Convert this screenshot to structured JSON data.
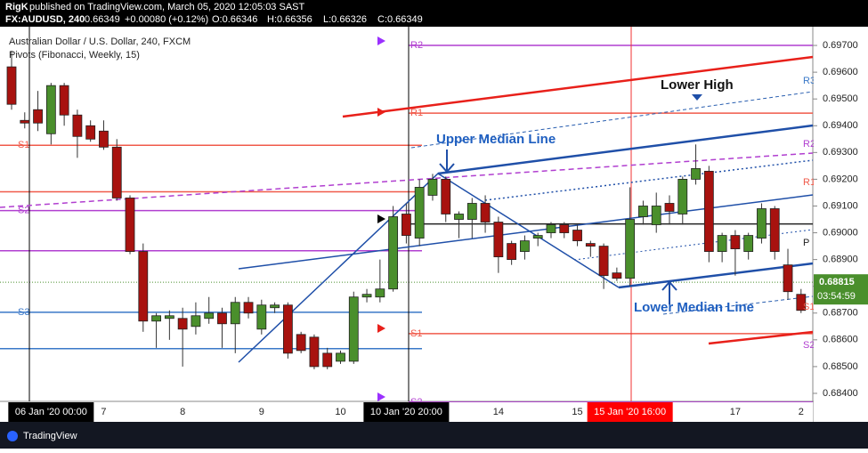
{
  "header": {
    "publisher": "RigK",
    "published": "published on TradingView.com, March 05, 2020 12:05:03 SAST",
    "symbol": "FX:AUDUSD, 240",
    "last": "0.66349",
    "change": "+0.00080 (+0.12%)",
    "open": "O:0.66346",
    "high": "H:0.66356",
    "low": "L:0.66326",
    "close": "C:0.66349"
  },
  "footer": {
    "brand": "TradingView"
  },
  "chart_data": {
    "type": "candlestick",
    "title": "Australian Dollar / U.S. Dollar, 240, FXCM",
    "subtitle": "Pivots (Fibonacci, Weekly, 15)",
    "categories": [
      null,
      null,
      null,
      "06 Jan '20  00:00",
      null,
      null,
      null,
      "7",
      null,
      null,
      null,
      null,
      null,
      "8",
      null,
      null,
      null,
      null,
      null,
      "9",
      null,
      null,
      null,
      null,
      null,
      "10",
      null,
      null,
      null,
      null,
      "10 Jan '20  20:00",
      null,
      null,
      null,
      null,
      null,
      null,
      "14",
      null,
      null,
      null,
      null,
      null,
      "15",
      null,
      null,
      null,
      "15 Jan '20  16:00",
      null,
      null,
      null,
      null,
      null,
      null,
      null,
      "17",
      null,
      null,
      null,
      null,
      "2"
    ],
    "open": [
      0.6962,
      0.6942,
      0.6946,
      0.6937,
      0.6955,
      0.6944,
      0.694,
      0.6938,
      0.6932,
      0.6913,
      0.6893,
      0.6867,
      0.6868,
      0.6868,
      0.6865,
      0.6868,
      0.687,
      0.6866,
      0.6874,
      0.6864,
      0.6872,
      0.6873,
      0.6862,
      0.6861,
      0.6855,
      0.6852,
      0.6852,
      0.6876,
      0.6876,
      0.6879,
      0.6907,
      0.6898,
      0.6914,
      0.692,
      0.6905,
      0.6905,
      0.6911,
      0.6904,
      0.6896,
      0.6893,
      0.6898,
      0.69,
      0.6903,
      0.6901,
      0.6896,
      0.6895,
      0.6885,
      0.6883,
      0.6906,
      0.6903,
      0.6911,
      0.6907,
      0.692,
      0.6923,
      0.6893,
      0.6899,
      0.6893,
      0.6898,
      0.6909,
      0.6888,
      0.6877
    ],
    "high": [
      0.6968,
      0.6945,
      0.6953,
      0.6956,
      0.6956,
      0.6946,
      0.6942,
      0.6942,
      0.6935,
      0.6914,
      0.6896,
      0.687,
      0.6871,
      0.6872,
      0.6874,
      0.6876,
      0.6872,
      0.6876,
      0.6876,
      0.6875,
      0.6874,
      0.6874,
      0.6863,
      0.6862,
      0.6857,
      0.6856,
      0.6878,
      0.6879,
      0.689,
      0.691,
      0.6911,
      0.692,
      0.6922,
      0.6921,
      0.6908,
      0.6913,
      0.6914,
      0.6906,
      0.6897,
      0.6899,
      0.69,
      0.6904,
      0.6904,
      0.6903,
      0.6897,
      0.6896,
      0.6887,
      0.6917,
      0.6912,
      0.6915,
      0.6914,
      0.6921,
      0.6933,
      0.6925,
      0.69,
      0.6901,
      0.69,
      0.6911,
      0.691,
      0.6894,
      0.6879
    ],
    "low": [
      0.6946,
      0.6939,
      0.6938,
      0.6933,
      0.694,
      0.6928,
      0.6934,
      0.6931,
      0.6912,
      0.6892,
      0.6863,
      0.6857,
      0.686,
      0.685,
      0.6862,
      0.6866,
      0.6857,
      0.6855,
      0.6868,
      0.6862,
      0.687,
      0.6853,
      0.6855,
      0.6849,
      0.6849,
      0.6851,
      0.6851,
      0.6874,
      0.6874,
      0.6878,
      0.6896,
      0.6895,
      0.6912,
      0.6904,
      0.6898,
      0.6898,
      0.69,
      0.6885,
      0.6888,
      0.689,
      0.6895,
      0.6898,
      0.6898,
      0.6895,
      0.6891,
      0.6879,
      0.6882,
      0.688,
      0.6903,
      0.69,
      0.6903,
      0.6903,
      0.6918,
      0.6889,
      0.6889,
      0.6884,
      0.689,
      0.6896,
      0.689,
      0.6875,
      0.687
    ],
    "close": [
      0.6948,
      0.6941,
      0.6941,
      0.6955,
      0.6944,
      0.6936,
      0.6935,
      0.6932,
      0.6913,
      0.6893,
      0.6867,
      0.6869,
      0.6869,
      0.6864,
      0.6869,
      0.687,
      0.6866,
      0.6874,
      0.687,
      0.6873,
      0.6873,
      0.6855,
      0.6856,
      0.685,
      0.685,
      0.6855,
      0.6876,
      0.6877,
      0.6879,
      0.6906,
      0.6899,
      0.6917,
      0.692,
      0.6907,
      0.6907,
      0.6911,
      0.6904,
      0.6891,
      0.689,
      0.6897,
      0.6899,
      0.6903,
      0.69,
      0.6897,
      0.6895,
      0.6884,
      0.6883,
      0.6905,
      0.691,
      0.691,
      0.6908,
      0.692,
      0.6924,
      0.6893,
      0.6899,
      0.6894,
      0.6899,
      0.6909,
      0.6893,
      0.6878,
      0.6871
    ],
    "up_color": "#4a8f2c",
    "down_color": "#a8120f",
    "ylim": [
      0.6837,
      0.6977
    ],
    "yticks": [
      {
        "value": 0.697,
        "label": "0.69700"
      },
      {
        "value": 0.696,
        "label": "0.69600"
      },
      {
        "value": 0.695,
        "label": "0.69500"
      },
      {
        "value": 0.694,
        "label": "0.69400"
      },
      {
        "value": 0.693,
        "label": "0.69300"
      },
      {
        "value": 0.692,
        "label": "0.69200"
      },
      {
        "value": 0.691,
        "label": "0.69100"
      },
      {
        "value": 0.69,
        "label": "0.69000"
      },
      {
        "value": 0.689,
        "label": "0.68900"
      },
      {
        "value": 0.688,
        "label": "0.68800"
      },
      {
        "value": 0.687,
        "label": "0.68700"
      },
      {
        "value": 0.686,
        "label": "0.68600"
      },
      {
        "value": 0.685,
        "label": "0.68500"
      },
      {
        "value": 0.684,
        "label": "0.68400"
      }
    ],
    "grid": false,
    "last_price": {
      "value": 0.68815,
      "label": "0.68815",
      "countdown": "03:54:59",
      "color": "#4a8f2c"
    },
    "pivots_left": [
      {
        "label": "S1",
        "value": 0.69327,
        "color": "#f05a4a"
      },
      {
        "value": 0.69153,
        "color": "#f05a4a"
      },
      {
        "label": "S2",
        "value": 0.69083,
        "color": "#b13fd0"
      },
      {
        "value": 0.68933,
        "color": "#b13fd0"
      },
      {
        "label": "S3",
        "value": 0.68703,
        "color": "#3a78c8"
      },
      {
        "value": 0.68567,
        "color": "#3a78c8"
      }
    ],
    "pivots_right": [
      {
        "label": "R2",
        "value": 0.697,
        "color": "#b13fd0"
      },
      {
        "label": "R1",
        "value": 0.69447,
        "color": "#f05a4a"
      },
      {
        "value": 0.69033,
        "color": "#222222"
      },
      {
        "label": "S1",
        "value": 0.68623,
        "color": "#f05a4a"
      },
      {
        "label": "S2",
        "value": 0.68367,
        "color": "#b13fd0"
      }
    ],
    "annotations": {
      "upper": "Upper Median Line",
      "lower_high": "Lower High",
      "lower": "Lower Median Line",
      "r3": "R3",
      "r2": "R2",
      "r1": "R1",
      "p": "P",
      "s1": "S1",
      "s2": "S2"
    }
  }
}
